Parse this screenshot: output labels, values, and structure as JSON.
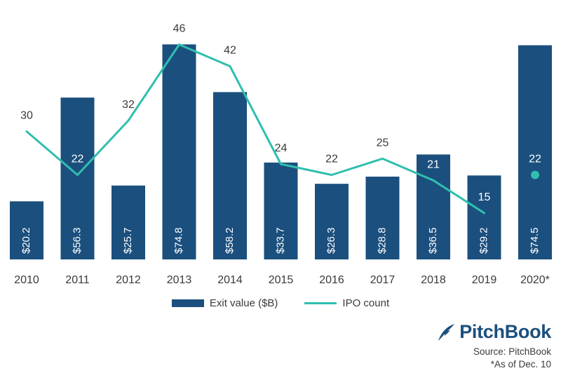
{
  "colors": {
    "bar": "#1b4f7e",
    "line": "#2fbfae",
    "text": "#3a3a3a",
    "brand": "#1b4f7e"
  },
  "chart_data": {
    "type": "bar",
    "categories": [
      "2010",
      "2011",
      "2012",
      "2013",
      "2014",
      "2015",
      "2016",
      "2017",
      "2018",
      "2019",
      "2020*"
    ],
    "series": [
      {
        "name": "Exit value ($B)",
        "type": "bar",
        "values": [
          20.2,
          56.3,
          25.7,
          74.8,
          58.2,
          33.7,
          26.3,
          28.8,
          36.5,
          29.2,
          74.5
        ],
        "labels": [
          "$20.2",
          "$56.3",
          "$25.7",
          "$74.8",
          "$58.2",
          "$33.7",
          "$26.3",
          "$28.8",
          "$36.5",
          "$29.2",
          "$74.5"
        ]
      },
      {
        "name": "IPO count",
        "type": "line",
        "values": [
          30,
          22,
          32,
          46,
          42,
          24,
          22,
          25,
          21,
          15,
          22
        ],
        "labels": [
          "30",
          "22",
          "32",
          "46",
          "42",
          "24",
          "22",
          "25",
          "21",
          "15",
          "22"
        ],
        "note": "2020* shown as a separate point, not connected to the line"
      }
    ],
    "ylim_bar": [
      0,
      80
    ],
    "ylim_count": [
      0,
      50
    ],
    "grid": false,
    "legend": "bottom-center"
  },
  "legend": {
    "bar_label": "Exit value ($B)",
    "line_label": "IPO count"
  },
  "brand": {
    "name": "PitchBook",
    "logo_icon": "pitchbook-feather-icon"
  },
  "source": "Source: PitchBook",
  "note": "*As of Dec. 10"
}
